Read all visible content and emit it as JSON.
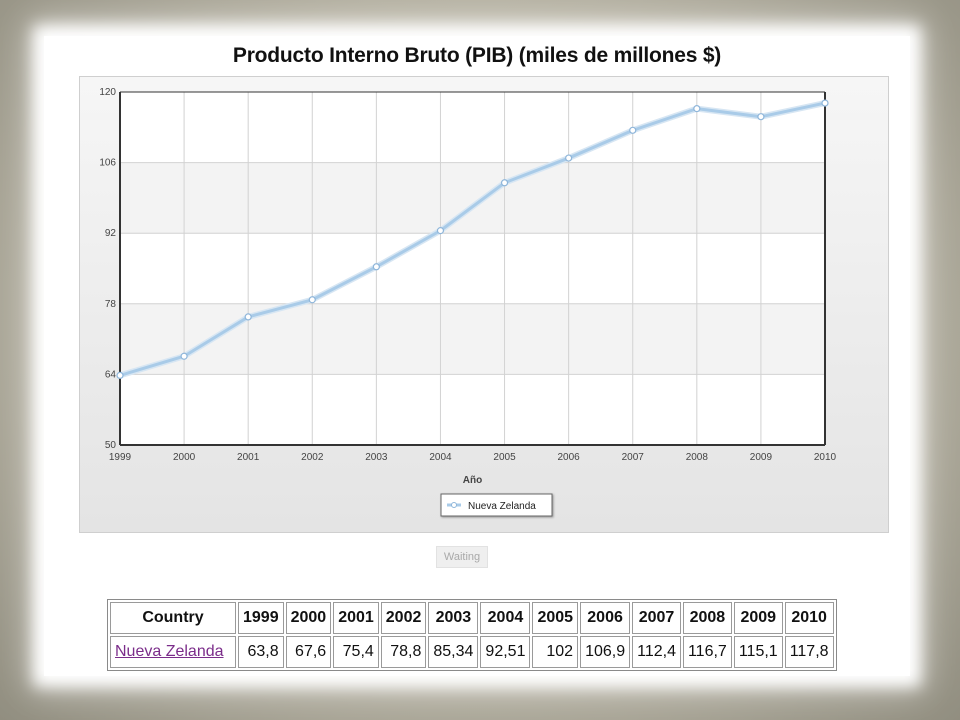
{
  "chart_data": {
    "type": "line",
    "title": "Producto Interno Bruto (PIB) (miles de millones $)",
    "xlabel": "Año",
    "ylabel": "",
    "categories": [
      "1999",
      "2000",
      "2001",
      "2002",
      "2003",
      "2004",
      "2005",
      "2006",
      "2007",
      "2008",
      "2009",
      "2010"
    ],
    "series": [
      {
        "name": "Nueva Zelanda",
        "values": [
          63.8,
          67.6,
          75.4,
          78.8,
          85.34,
          92.51,
          102,
          106.9,
          112.4,
          116.7,
          115.1,
          117.8
        ]
      }
    ],
    "ylim": [
      50,
      120
    ],
    "yticks": [
      "50",
      "64",
      "78",
      "92",
      "106",
      "120"
    ],
    "grid": true,
    "legend_position": "bottom-center",
    "line_color": "#a9cbe8"
  },
  "status": {
    "waiting": "Waiting"
  },
  "table": {
    "header_country": "Country",
    "years": [
      "1999",
      "2000",
      "2001",
      "2002",
      "2003",
      "2004",
      "2005",
      "2006",
      "2007",
      "2008",
      "2009",
      "2010"
    ],
    "rows": [
      {
        "country": "Nueva Zelanda",
        "values": [
          "63,8",
          "67,6",
          "75,4",
          "78,8",
          "85,34",
          "92,51",
          "102",
          "106,9",
          "112,4",
          "116,7",
          "115,1",
          "117,8"
        ]
      }
    ]
  }
}
